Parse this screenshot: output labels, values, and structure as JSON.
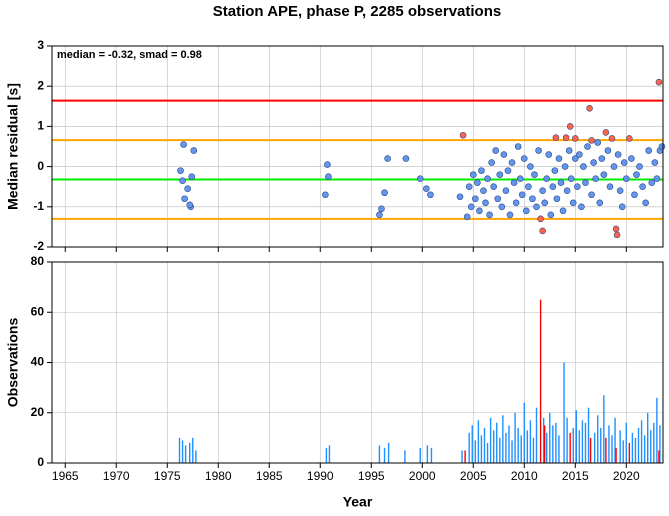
{
  "chart_data": [
    {
      "type": "scatter",
      "title": "Station APE, phase P, 2285 observations",
      "annotation": "median = -0.32, smad = 0.98",
      "ylabel": "Median residual [s]",
      "xlim": [
        1963.7,
        2023.6
      ],
      "xticks": [
        1965,
        1970,
        1975,
        1980,
        1985,
        1990,
        1995,
        2000,
        2005,
        2010,
        2015,
        2020
      ],
      "ylim": [
        -2,
        3
      ],
      "yticks": [
        -2,
        -1,
        0,
        1,
        2,
        3
      ],
      "grid": true,
      "hlines": [
        {
          "value": 1.64,
          "color": "#ff0000"
        },
        {
          "value": 0.66,
          "color": "#ffa500"
        },
        {
          "value": -1.3,
          "color": "#ffa500"
        },
        {
          "value": -0.32,
          "color": "#00ee00"
        }
      ],
      "series": [
        {
          "color": "#6495ed",
          "x": [
            1976.3,
            1976.6,
            1976.5,
            1976.7,
            1977,
            1977.3,
            1977.4,
            1977.6,
            1977.2,
            1990.5,
            1990.7,
            1990.8,
            1995.8,
            1996,
            1996.3,
            1996.6,
            1998.4,
            1999.8,
            2000.4,
            2000.8,
            2003.7,
            2004.4,
            2004.6,
            2004.8,
            2005,
            2005.2,
            2005.4,
            2005.6,
            2005.8,
            2006,
            2006.2,
            2006.4,
            2006.6,
            2006.8,
            2007,
            2007.2,
            2007.4,
            2007.6,
            2007.8,
            2008,
            2008.2,
            2008.4,
            2008.6,
            2008.8,
            2009,
            2009.2,
            2009.4,
            2009.6,
            2009.8,
            2010,
            2010.2,
            2010.4,
            2010.6,
            2010.8,
            2011,
            2011.2,
            2011.4,
            2011.8,
            2012,
            2012.2,
            2012.4,
            2012.6,
            2012.8,
            2013,
            2013.2,
            2013.4,
            2013.6,
            2013.8,
            2014,
            2014.2,
            2014.4,
            2014.6,
            2014.8,
            2015,
            2015.2,
            2015.4,
            2015.6,
            2015.8,
            2016,
            2016.2,
            2016.6,
            2016.8,
            2017,
            2017.2,
            2017.4,
            2017.6,
            2017.8,
            2018.2,
            2018.4,
            2018.8,
            2019.2,
            2019.4,
            2019.6,
            2019.8,
            2020,
            2020.5,
            2020.8,
            2021,
            2021.3,
            2021.6,
            2021.9,
            2022.2,
            2022.5,
            2022.8,
            2023,
            2023.3,
            2023.5
          ],
          "values": [
            -0.1,
            0.55,
            -0.35,
            -0.8,
            -0.55,
            -1.0,
            -0.25,
            0.4,
            -0.95,
            -0.7,
            0.05,
            -0.25,
            -1.2,
            -1.05,
            -0.65,
            0.2,
            0.2,
            -0.3,
            -0.55,
            -0.7,
            -0.75,
            -1.25,
            -0.5,
            -1.0,
            -0.2,
            -0.8,
            -0.4,
            -1.1,
            -0.1,
            -0.6,
            -0.9,
            -0.3,
            -1.2,
            0.1,
            -0.5,
            0.4,
            -0.8,
            -0.2,
            -1.0,
            0.3,
            -0.6,
            -0.1,
            -1.2,
            0.1,
            -0.4,
            -0.9,
            0.5,
            -0.3,
            -0.7,
            0.2,
            -1.1,
            -0.5,
            0.0,
            -0.8,
            -0.2,
            -1.0,
            0.4,
            -0.6,
            -0.9,
            -0.3,
            0.3,
            -1.2,
            -0.5,
            -0.1,
            -0.8,
            0.2,
            -0.4,
            -1.1,
            0.0,
            -0.6,
            0.4,
            -0.3,
            -0.9,
            0.2,
            -0.5,
            0.3,
            -1.0,
            0.0,
            -0.4,
            0.5,
            -0.7,
            0.1,
            -0.3,
            0.6,
            -0.9,
            0.2,
            -0.2,
            0.4,
            -0.5,
            0.0,
            0.3,
            -0.6,
            -1.0,
            0.1,
            -0.3,
            0.2,
            -0.7,
            -0.2,
            0.0,
            -0.5,
            -0.9,
            0.4,
            -0.4,
            0.1,
            -0.3,
            0.4,
            0.5
          ]
        },
        {
          "color": "#ff6347",
          "x": [
            2004,
            2011.6,
            2011.8,
            2013.1,
            2014.1,
            2014.5,
            2015,
            2016.4,
            2016.6,
            2018,
            2018.6,
            2019,
            2019.1,
            2020.3,
            2023.2
          ],
          "values": [
            0.78,
            -1.3,
            -1.6,
            0.72,
            0.72,
            1.0,
            0.7,
            1.45,
            0.65,
            0.85,
            0.7,
            -1.55,
            -1.7,
            0.7,
            2.1
          ]
        }
      ]
    },
    {
      "type": "bar",
      "ylabel": "Observations",
      "xlabel": "Year",
      "xlim": [
        1963.7,
        2023.6
      ],
      "xticks": [
        1965,
        1970,
        1975,
        1980,
        1985,
        1990,
        1995,
        2000,
        2005,
        2010,
        2015,
        2020
      ],
      "ylim": [
        0,
        80
      ],
      "yticks": [
        0,
        20,
        40,
        60,
        80
      ],
      "grid": true,
      "series": [
        {
          "color": "#1e90ff",
          "x": [
            1976.2,
            1976.5,
            1976.8,
            1977.2,
            1977.5,
            1977.8,
            1990.6,
            1990.9,
            1995.8,
            1996.3,
            1996.7,
            1998.3,
            1999.8,
            2000.5,
            2000.9,
            2003.9,
            2004.6,
            2004.9,
            2005.2,
            2005.5,
            2005.8,
            2006.1,
            2006.4,
            2006.7,
            2007,
            2007.3,
            2007.6,
            2007.9,
            2008.2,
            2008.5,
            2008.8,
            2009.1,
            2009.4,
            2009.7,
            2010,
            2010.3,
            2010.6,
            2010.9,
            2011.2,
            2011.9,
            2012.2,
            2012.5,
            2012.8,
            2013.1,
            2013.4,
            2013.9,
            2014.2,
            2014.8,
            2015.1,
            2015.4,
            2015.7,
            2016,
            2016.3,
            2016.9,
            2017.2,
            2017.5,
            2017.8,
            2018.3,
            2018.6,
            2018.9,
            2019.4,
            2019.7,
            2020,
            2020.6,
            2020.9,
            2021.2,
            2021.5,
            2021.8,
            2022.1,
            2022.4,
            2022.7,
            2023,
            2023.3
          ],
          "values": [
            10,
            9,
            7,
            8,
            10,
            5,
            6,
            7,
            7,
            6,
            8,
            5,
            6,
            7,
            6,
            5,
            12,
            15,
            9,
            17,
            11,
            14,
            8,
            18,
            13,
            16,
            10,
            19,
            12,
            15,
            9,
            20,
            14,
            11,
            24,
            13,
            17,
            10,
            22,
            18,
            12,
            20,
            15,
            16,
            11,
            40,
            18,
            14,
            21,
            13,
            17,
            16,
            22,
            12,
            19,
            14,
            27,
            15,
            11,
            18,
            13,
            9,
            16,
            12,
            10,
            14,
            17,
            11,
            20,
            13,
            16,
            26,
            15
          ]
        },
        {
          "color": "#ff0000",
          "x": [
            2004.2,
            2011.6,
            2012,
            2014.5,
            2016.5,
            2018,
            2019,
            2020.3,
            2023.2
          ],
          "values": [
            5,
            65,
            15,
            12,
            10,
            10,
            6,
            8,
            5
          ]
        }
      ]
    }
  ]
}
